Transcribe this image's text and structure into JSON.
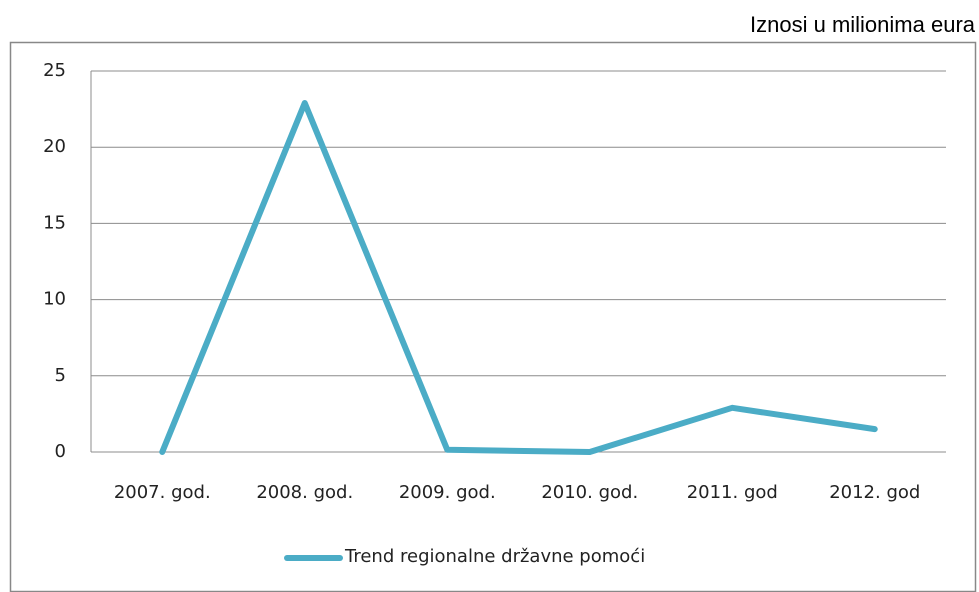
{
  "chart_data": {
    "type": "line",
    "annotation": "Iznosi u milionima eura",
    "categories": [
      "2007. god.",
      "2008. god.",
      "2009. god.",
      "2010. god.",
      "2011. god",
      "2012. god"
    ],
    "series": [
      {
        "name": "Trend regionalne državne pomoći",
        "color": "#4bacc6",
        "values": [
          0,
          22.9,
          0.15,
          0,
          2.9,
          1.5
        ]
      }
    ],
    "ylim": [
      0,
      25
    ],
    "yticks": [
      0,
      5,
      10,
      15,
      20,
      25
    ],
    "grid": true,
    "legend": "bottom"
  }
}
